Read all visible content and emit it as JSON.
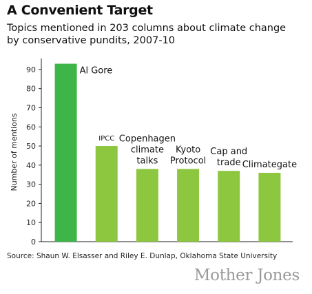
{
  "header": {
    "title": "A Convenient Target",
    "subtitle": "Topics mentioned in 203 columns about climate change by conservative pundits, 2007-10"
  },
  "footer": {
    "source": "Source: Shaun W. Elsasser and Riley E. Dunlap, Oklahoma State University",
    "brand": "Mother Jones"
  },
  "chart_data": {
    "type": "bar",
    "title": "A Convenient Target",
    "subtitle": "Topics mentioned in 203 columns about climate change by conservative pundits, 2007-10",
    "xlabel": "",
    "ylabel": "Number of mentions",
    "ylim": [
      0,
      95
    ],
    "yticks": [
      0,
      10,
      20,
      30,
      40,
      50,
      60,
      70,
      80,
      90
    ],
    "grid": false,
    "categories": [
      "Al Gore",
      "IPCC",
      "Copenhagen climate talks",
      "Kyoto Protocol",
      "Cap and trade",
      "Climategate"
    ],
    "category_lines": [
      [
        "Al Gore"
      ],
      [
        "IPCC"
      ],
      [
        "Copenhagen",
        "climate",
        "talks"
      ],
      [
        "Kyoto",
        "Protocol"
      ],
      [
        "Cap and",
        "trade"
      ],
      [
        "Climategate"
      ]
    ],
    "values": [
      93,
      50,
      38,
      38,
      37,
      36
    ],
    "colors": {
      "highlight": "#3db549",
      "bar": "#8dc63f",
      "axis": "#222222"
    }
  }
}
